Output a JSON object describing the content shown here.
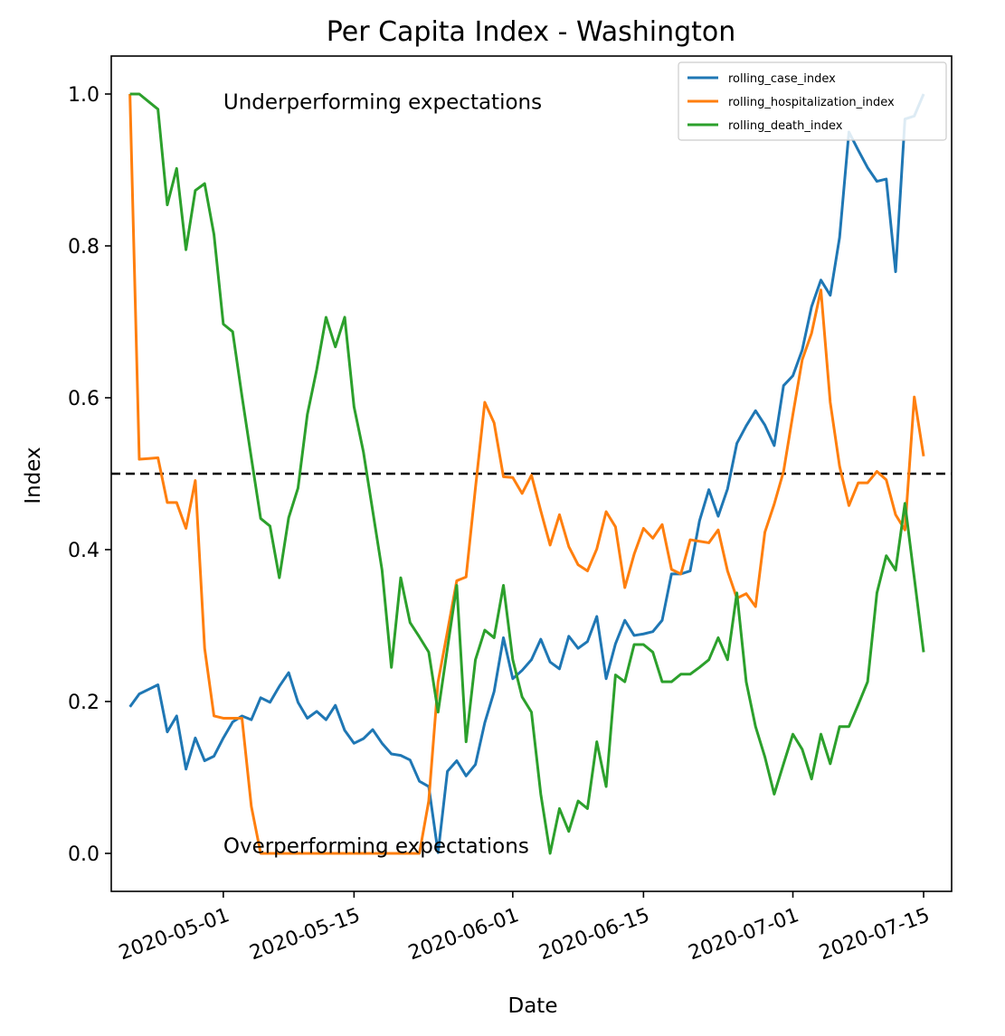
{
  "chart_data": {
    "type": "line",
    "title": "Per Capita Index - Washington",
    "xlabel": "Date",
    "ylabel": "Index",
    "x_start": "2020-04-21",
    "xlim": [
      "2020-04-19",
      "2020-07-18"
    ],
    "ylim": [
      -0.05,
      1.05
    ],
    "x_ticks": [
      "2020-05-01",
      "2020-05-15",
      "2020-06-01",
      "2020-06-15",
      "2020-07-01",
      "2020-07-15"
    ],
    "y_ticks": [
      0.0,
      0.2,
      0.4,
      0.6,
      0.8,
      1.0
    ],
    "y_tick_labels": [
      "0.0",
      "0.2",
      "0.4",
      "0.6",
      "0.8",
      "1.0"
    ],
    "grid": false,
    "legend_position": "upper right",
    "reference_line": {
      "y": 0.5,
      "style": "dashed",
      "color": "#000000"
    },
    "annotations": [
      {
        "text": "Underperforming expectations",
        "x": "2020-05-01",
        "y": 0.99
      },
      {
        "text": "Overperforming expectations",
        "x": "2020-05-01",
        "y": 0.01
      }
    ],
    "series": [
      {
        "name": "rolling_case_index",
        "color": "#1f77b4",
        "values": [
          0.193,
          0.21,
          0.216,
          0.222,
          0.16,
          0.181,
          0.111,
          0.152,
          0.122,
          0.128,
          0.152,
          0.173,
          0.181,
          0.176,
          0.205,
          0.199,
          0.22,
          0.238,
          0.199,
          0.178,
          0.187,
          0.176,
          0.195,
          0.162,
          0.145,
          0.151,
          0.163,
          0.145,
          0.131,
          0.129,
          0.123,
          0.095,
          0.088,
          0.001,
          0.108,
          0.122,
          0.102,
          0.117,
          0.172,
          0.213,
          0.284,
          0.23,
          0.241,
          0.255,
          0.282,
          0.252,
          0.243,
          0.286,
          0.27,
          0.279,
          0.312,
          0.23,
          0.276,
          0.307,
          0.287,
          0.289,
          0.292,
          0.307,
          0.368,
          0.368,
          0.372,
          0.438,
          0.479,
          0.444,
          0.48,
          0.54,
          0.563,
          0.583,
          0.564,
          0.537,
          0.616,
          0.629,
          0.663,
          0.72,
          0.755,
          0.735,
          0.811,
          0.95,
          0.926,
          0.903,
          0.885,
          0.888,
          0.766,
          0.967,
          0.971,
          1.0
        ]
      },
      {
        "name": "rolling_hospitalization_index",
        "color": "#ff7f0e",
        "values": [
          1.0,
          0.519,
          0.52,
          0.521,
          0.462,
          0.462,
          0.428,
          0.491,
          0.27,
          0.181,
          0.178,
          0.178,
          0.178,
          0.062,
          0.0,
          0.0,
          0.0,
          0.0,
          0.0,
          0.0,
          0.0,
          0.0,
          0.0,
          0.0,
          0.0,
          0.0,
          0.0,
          0.0,
          0.0,
          0.0,
          0.0,
          0.0,
          0.069,
          0.226,
          0.292,
          0.359,
          0.364,
          0.481,
          0.594,
          0.567,
          0.496,
          0.495,
          0.474,
          0.498,
          0.451,
          0.406,
          0.446,
          0.404,
          0.38,
          0.372,
          0.401,
          0.45,
          0.43,
          0.35,
          0.394,
          0.428,
          0.415,
          0.433,
          0.374,
          0.368,
          0.413,
          0.411,
          0.409,
          0.426,
          0.372,
          0.336,
          0.342,
          0.325,
          0.423,
          0.46,
          0.503,
          0.578,
          0.65,
          0.685,
          0.742,
          0.594,
          0.51,
          0.458,
          0.488,
          0.488,
          0.503,
          0.492,
          0.446,
          0.426,
          0.601,
          0.523
        ]
      },
      {
        "name": "rolling_death_index",
        "color": "#2ca02c",
        "values": [
          1.0,
          1.0,
          0.99,
          0.98,
          0.854,
          0.902,
          0.795,
          0.873,
          0.882,
          0.815,
          0.697,
          0.687,
          0.602,
          0.521,
          0.441,
          0.431,
          0.363,
          0.442,
          0.481,
          0.578,
          0.637,
          0.706,
          0.667,
          0.706,
          0.588,
          0.529,
          0.451,
          0.373,
          0.245,
          0.363,
          0.304,
          0.285,
          0.265,
          0.186,
          0.27,
          0.353,
          0.147,
          0.255,
          0.294,
          0.284,
          0.353,
          0.255,
          0.206,
          0.186,
          0.078,
          0.0,
          0.059,
          0.029,
          0.069,
          0.059,
          0.147,
          0.088,
          0.235,
          0.226,
          0.275,
          0.275,
          0.265,
          0.226,
          0.226,
          0.236,
          0.236,
          0.245,
          0.255,
          0.284,
          0.255,
          0.343,
          0.226,
          0.167,
          0.127,
          0.078,
          0.118,
          0.157,
          0.137,
          0.098,
          0.157,
          0.118,
          0.167,
          0.167,
          0.196,
          0.226,
          0.343,
          0.392,
          0.373,
          0.461,
          0.363,
          0.265
        ]
      }
    ]
  }
}
